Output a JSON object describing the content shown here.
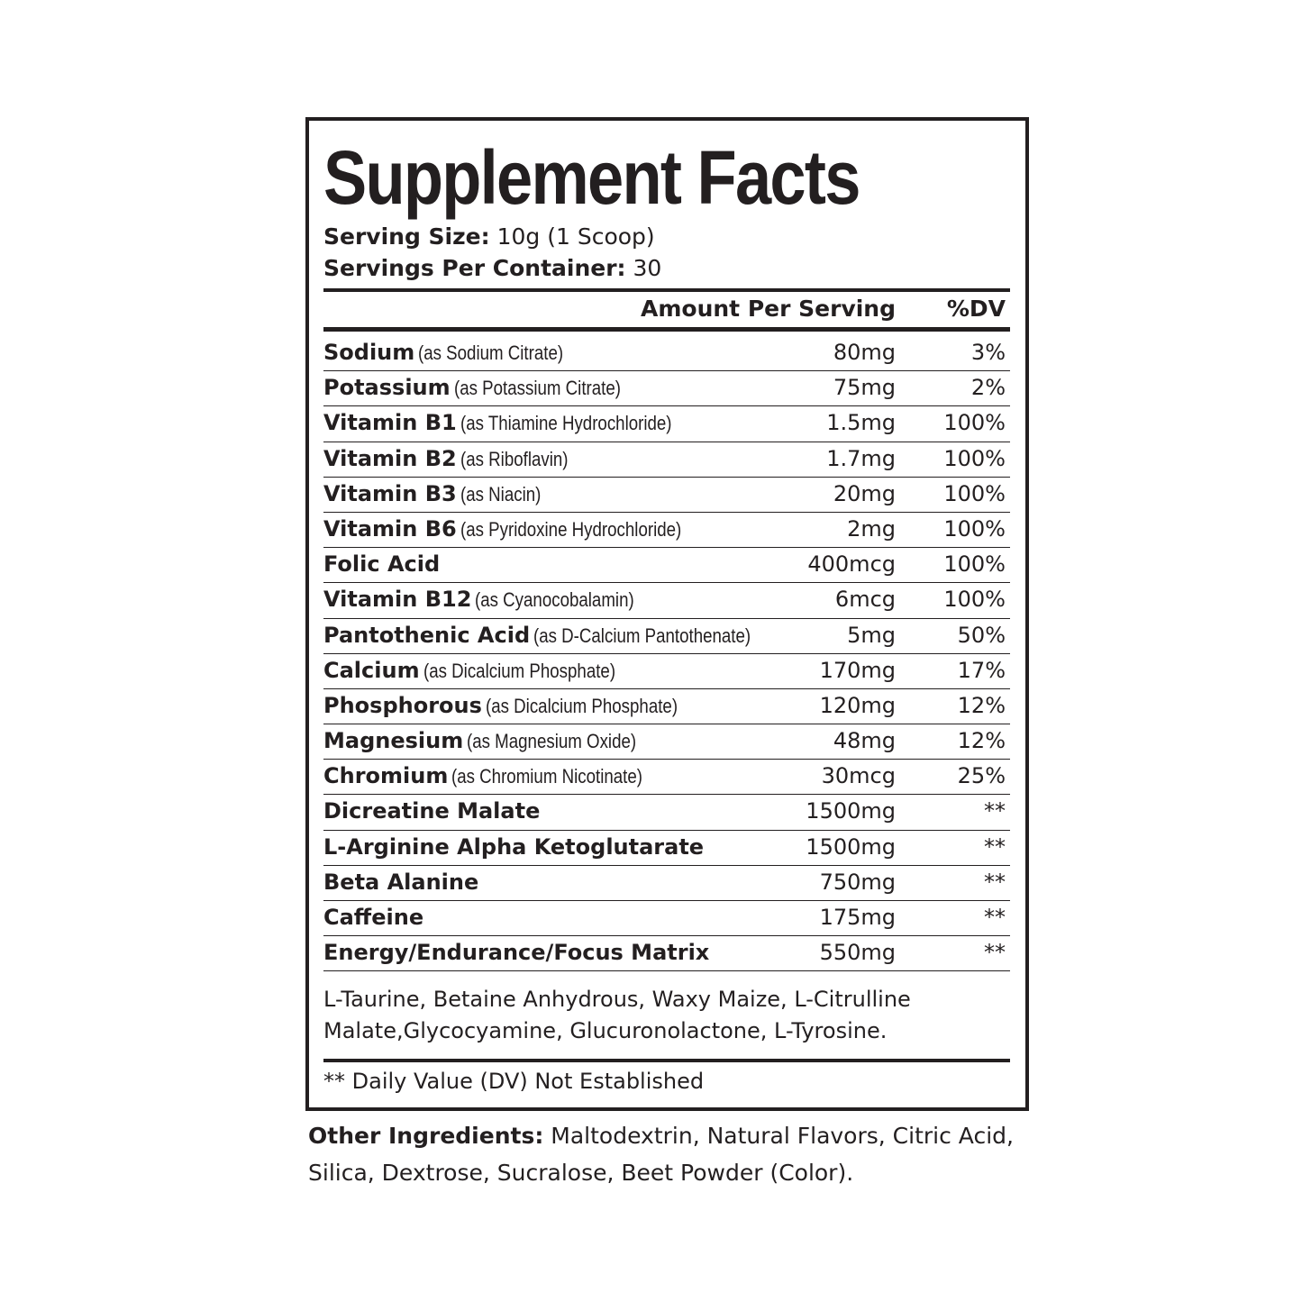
{
  "title": "Supplement Facts",
  "serving_size": {
    "label": "Serving Size:",
    "value": "10g (1 Scoop)"
  },
  "servings_per_container": {
    "label": "Servings Per Container:",
    "value": "30"
  },
  "header": {
    "amount": "Amount Per Serving",
    "dv": "%DV"
  },
  "rows": [
    {
      "name": "Sodium",
      "source": "(as Sodium Citrate)",
      "amount": "80mg",
      "dv": "3%"
    },
    {
      "name": "Potassium",
      "source": "(as Potassium Citrate)",
      "amount": "75mg",
      "dv": "2%"
    },
    {
      "name": "Vitamin B1",
      "source": "(as Thiamine Hydrochloride)",
      "amount": "1.5mg",
      "dv": "100%"
    },
    {
      "name": "Vitamin B2",
      "source": "(as Riboflavin)",
      "amount": "1.7mg",
      "dv": "100%"
    },
    {
      "name": "Vitamin B3",
      "source": "(as Niacin)",
      "amount": "20mg",
      "dv": "100%"
    },
    {
      "name": "Vitamin B6",
      "source": "(as Pyridoxine Hydrochloride)",
      "amount": "2mg",
      "dv": "100%"
    },
    {
      "name": "Folic Acid",
      "source": "",
      "amount": "400mcg",
      "dv": "100%"
    },
    {
      "name": "Vitamin B12",
      "source": "(as Cyanocobalamin)",
      "amount": "6mcg",
      "dv": "100%"
    },
    {
      "name": "Pantothenic Acid",
      "source": "(as D-Calcium Pantothenate)",
      "amount": "5mg",
      "dv": "50%"
    },
    {
      "name": "Calcium",
      "source": "(as Dicalcium Phosphate)",
      "amount": "170mg",
      "dv": "17%"
    },
    {
      "name": "Phosphorous",
      "source": "(as Dicalcium Phosphate)",
      "amount": "120mg",
      "dv": "12%"
    },
    {
      "name": "Magnesium",
      "source": "(as Magnesium Oxide)",
      "amount": "48mg",
      "dv": "12%"
    },
    {
      "name": "Chromium",
      "source": "(as Chromium Nicotinate)",
      "amount": "30mcg",
      "dv": "25%"
    },
    {
      "name": "Dicreatine Malate",
      "source": "",
      "amount": "1500mg",
      "dv": "**"
    },
    {
      "name": "L-Arginine Alpha Ketoglutarate",
      "source": "",
      "amount": "1500mg",
      "dv": "**"
    },
    {
      "name": "Beta Alanine",
      "source": "",
      "amount": "750mg",
      "dv": "**"
    },
    {
      "name": "Caffeine",
      "source": "",
      "amount": "175mg",
      "dv": "**"
    },
    {
      "name": "Energy/Endurance/Focus Matrix",
      "source": "",
      "amount": "550mg",
      "dv": "**"
    }
  ],
  "matrix_ingredients": "L-Taurine, Betaine Anhydrous, Waxy Maize,  L-Citrulline Malate,Glycocyamine, Glucuronolactone, L-Tyrosine.",
  "footnote": "** Daily Value (DV) Not Established",
  "other_ingredients": {
    "label": "Other Ingredients:",
    "value": "Maltodextrin, Natural Flavors, Citric Acid, Silica, Dextrose, Sucralose, Beet Powder (Color)."
  }
}
